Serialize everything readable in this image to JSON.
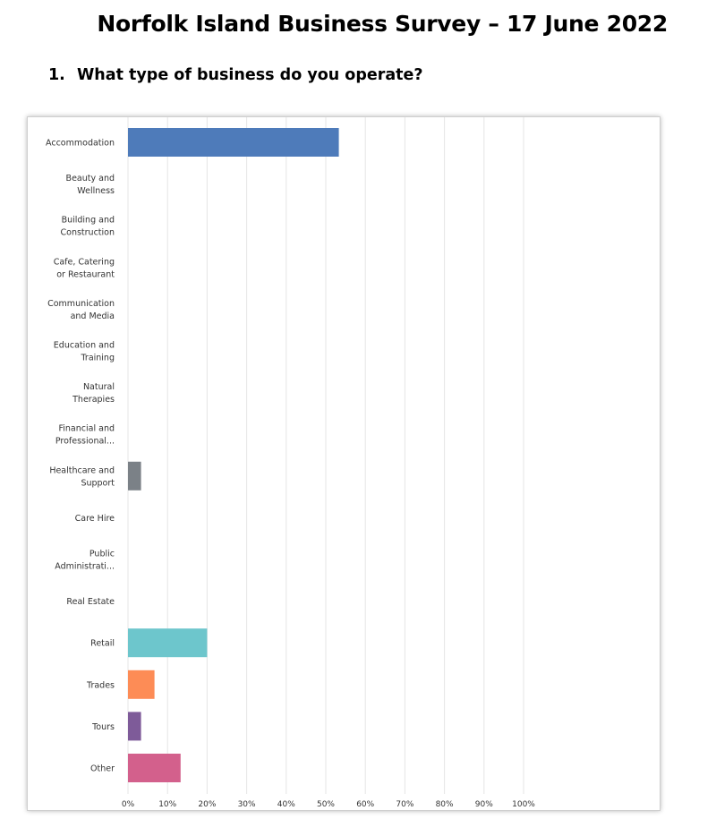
{
  "page": {
    "title": "Norfolk Island Business Survey – 17 June 2022",
    "question_number": "1.",
    "question_text": "What type of business do you operate?"
  },
  "colors": {
    "accommodation": "#4e7bba",
    "healthcare": "#7b8187",
    "retail": "#6dc6cc",
    "trades": "#fd8c56",
    "tours": "#7e5b99",
    "other": "#d3608c",
    "grid": "#e5e5e5",
    "label": "#333333"
  },
  "chart_data": {
    "type": "bar",
    "orientation": "horizontal",
    "categories": [
      [
        "Accommodation"
      ],
      [
        "Beauty and",
        "Wellness"
      ],
      [
        "Building and",
        "Construction"
      ],
      [
        "Cafe, Catering",
        "or Restaurant"
      ],
      [
        "Communication",
        "and Media"
      ],
      [
        "Education and",
        "Training"
      ],
      [
        "Natural",
        "Therapies"
      ],
      [
        "Financial and",
        "Professional..."
      ],
      [
        "Healthcare and",
        "Support"
      ],
      [
        "Care Hire"
      ],
      [
        "Public",
        "Administrati..."
      ],
      [
        "Real Estate"
      ],
      [
        "Retail"
      ],
      [
        "Trades"
      ],
      [
        "Tours"
      ],
      [
        "Other"
      ]
    ],
    "values": [
      53.3,
      0,
      0,
      0,
      0,
      0,
      0,
      0,
      3.3,
      0,
      0,
      0,
      20,
      6.7,
      3.3,
      13.3
    ],
    "bar_colors": [
      "#4e7bba",
      null,
      null,
      null,
      null,
      null,
      null,
      null,
      "#7b8187",
      null,
      null,
      null,
      "#6dc6cc",
      "#fd8c56",
      "#7e5b99",
      "#d3608c"
    ],
    "x_ticks": [
      "0%",
      "10%",
      "20%",
      "30%",
      "40%",
      "50%",
      "60%",
      "70%",
      "80%",
      "90%",
      "100%"
    ],
    "xlim": [
      0,
      100
    ],
    "grid": true,
    "legend": "none",
    "title": "",
    "xlabel": "",
    "ylabel": ""
  }
}
